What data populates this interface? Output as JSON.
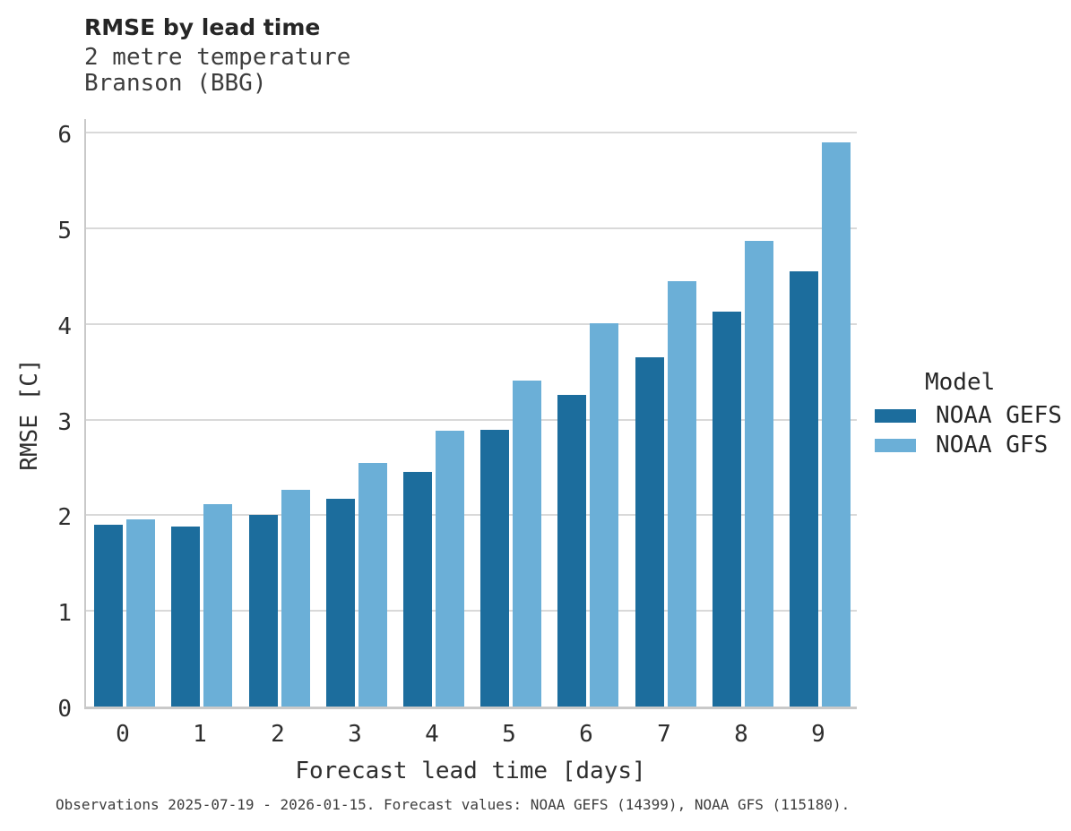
{
  "header": {
    "title": "RMSE by lead time",
    "subtitle_line1": "2 metre temperature",
    "subtitle_line2": "Branson (BBG)"
  },
  "chart_data": {
    "type": "bar",
    "title": "RMSE by lead time",
    "subtitle": "2 metre temperature — Branson (BBG)",
    "categories": [
      "0",
      "1",
      "2",
      "3",
      "4",
      "5",
      "6",
      "7",
      "8",
      "9"
    ],
    "series": [
      {
        "name": "NOAA GEFS",
        "color": "#1c6d9d",
        "values": [
          1.9,
          1.88,
          2.0,
          2.17,
          2.45,
          2.89,
          3.26,
          3.65,
          4.13,
          4.55
        ]
      },
      {
        "name": "NOAA GFS",
        "color": "#6bafd7",
        "values": [
          1.96,
          2.12,
          2.27,
          2.55,
          2.88,
          3.41,
          4.01,
          4.45,
          4.87,
          5.9
        ]
      }
    ],
    "xlabel": "Forecast lead time [days]",
    "ylabel": "RMSE [C]",
    "ylim": [
      0,
      6.17
    ],
    "yticks": [
      "0",
      "1",
      "2",
      "3",
      "4",
      "5",
      "6"
    ],
    "grid": "horizontal",
    "legend_title": "Model",
    "legend_position": "right-middle"
  },
  "legend": {
    "title": "Model",
    "items": [
      {
        "label": "NOAA GEFS",
        "color": "#1c6d9d"
      },
      {
        "label": "NOAA GFS",
        "color": "#6bafd7"
      }
    ]
  },
  "footer": {
    "caption": "Observations 2025-07-19 - 2026-01-15. Forecast values: NOAA GEFS (14399), NOAA GFS (115180)."
  },
  "colors": {
    "background": "#ffffff",
    "gridline": "#d9d9d9",
    "axis_line": "#c9c9c9",
    "title_text": "#262626",
    "subtitle_text": "#3d3d3d",
    "tick_text": "#2e2e2e",
    "gefs_bar": "#1c6d9d",
    "gfs_bar": "#6bafd7"
  }
}
